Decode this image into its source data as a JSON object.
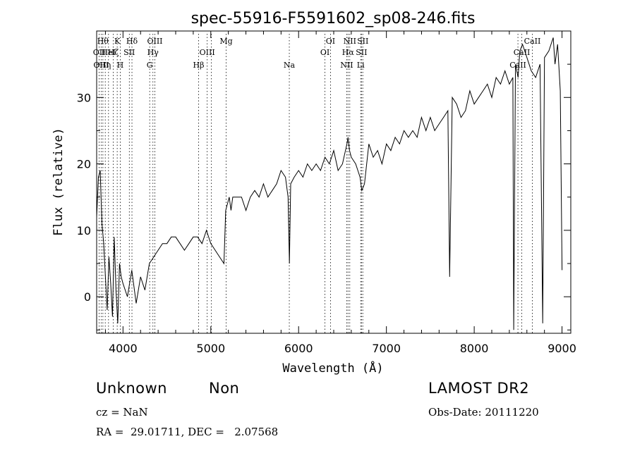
{
  "chart_data": {
    "type": "line",
    "title": "spec-55916-F5591602_sp08-246.fits",
    "xlabel": "Wavelength (Å)",
    "ylabel": "Flux (relative)",
    "xlim": [
      3700,
      9100
    ],
    "ylim": [
      -5.5,
      40
    ],
    "xticks": [
      4000,
      5000,
      6000,
      7000,
      8000,
      9000
    ],
    "yticks": [
      0,
      10,
      20,
      30
    ],
    "grid": false,
    "series": [
      {
        "x": [
          3700,
          3720,
          3740,
          3760,
          3780,
          3800,
          3820,
          3840,
          3860,
          3880,
          3900,
          3920,
          3940,
          3960,
          3980,
          4000,
          4050,
          4100,
          4150,
          4200,
          4250,
          4300,
          4350,
          4400,
          4450,
          4500,
          4550,
          4600,
          4650,
          4700,
          4750,
          4800,
          4850,
          4900,
          4950,
          5000,
          5050,
          5100,
          5150,
          5170,
          5190,
          5210,
          5230,
          5250,
          5300,
          5350,
          5400,
          5450,
          5500,
          5550,
          5600,
          5650,
          5700,
          5750,
          5800,
          5850,
          5880,
          5895,
          5910,
          5950,
          6000,
          6050,
          6100,
          6150,
          6200,
          6250,
          6300,
          6350,
          6400,
          6450,
          6500,
          6550,
          6563,
          6580,
          6600,
          6650,
          6700,
          6720,
          6750,
          6800,
          6850,
          6900,
          6950,
          7000,
          7050,
          7100,
          7150,
          7200,
          7250,
          7300,
          7350,
          7400,
          7450,
          7500,
          7550,
          7600,
          7650,
          7700,
          7720,
          7750,
          7800,
          7850,
          7900,
          7950,
          8000,
          8050,
          8100,
          8150,
          8200,
          8250,
          8300,
          8350,
          8400,
          8440,
          8450,
          8470,
          8500,
          8520,
          8550,
          8600,
          8650,
          8700,
          8750,
          8780,
          8800,
          8850,
          8900,
          8920,
          8950,
          8980,
          9000
        ],
        "y": [
          12,
          18,
          19,
          11,
          8,
          3,
          -2,
          6,
          2,
          -3,
          9,
          1,
          -4,
          5,
          3,
          2,
          0,
          4,
          -1,
          3,
          1,
          5,
          6,
          7,
          8,
          8,
          9,
          9,
          8,
          7,
          8,
          9,
          9,
          8,
          10,
          8,
          7,
          6,
          5,
          13,
          14,
          15,
          13,
          15,
          15,
          15,
          13,
          15,
          16,
          15,
          17,
          15,
          16,
          17,
          19,
          18,
          15,
          5,
          17,
          18,
          19,
          18,
          20,
          19,
          20,
          19,
          21,
          20,
          22,
          19,
          20,
          23,
          24,
          22,
          21,
          20,
          18,
          16,
          17,
          23,
          21,
          22,
          20,
          23,
          22,
          24,
          23,
          25,
          24,
          25,
          24,
          27,
          25,
          27,
          25,
          26,
          27,
          28,
          3,
          30,
          29,
          27,
          28,
          31,
          29,
          30,
          31,
          32,
          30,
          33,
          32,
          34,
          32,
          33,
          -5,
          35,
          33,
          37,
          38,
          36,
          34,
          33,
          35,
          -4,
          36,
          37,
          39,
          35,
          38,
          31,
          4
        ]
      }
    ],
    "line_marks": [
      {
        "wave": 3729,
        "label": "OII",
        "row": 2
      },
      {
        "wave": 3751,
        "label": "OIII",
        "row": 3
      },
      {
        "wave": 3771,
        "label": "Hθ",
        "row": 1
      },
      {
        "wave": 3798,
        "label": "Hη",
        "row": 3
      },
      {
        "wave": 3835,
        "label": "HeI",
        "row": 2
      },
      {
        "wave": 3889,
        "label": "Hζ",
        "row": 2
      },
      {
        "wave": 3934,
        "label": "K",
        "row": 1
      },
      {
        "wave": 3969,
        "label": "H",
        "row": 3
      },
      {
        "wave": 4072,
        "label": "SII",
        "row": 2
      },
      {
        "wave": 4102,
        "label": "Hδ",
        "row": 1
      },
      {
        "wave": 4304,
        "label": "G",
        "row": 3
      },
      {
        "wave": 4341,
        "label": "Hγ",
        "row": 2
      },
      {
        "wave": 4363,
        "label": "OIII",
        "row": 1
      },
      {
        "wave": 4861,
        "label": "Hβ",
        "row": 3
      },
      {
        "wave": 4959,
        "label": "OIII",
        "row": 2
      },
      {
        "wave": 5007,
        "label": "",
        "row": 2
      },
      {
        "wave": 5175,
        "label": "Mg",
        "row": 1
      },
      {
        "wave": 5894,
        "label": "Na",
        "row": 3
      },
      {
        "wave": 6300,
        "label": "OI",
        "row": 2
      },
      {
        "wave": 6363,
        "label": "OI",
        "row": 1
      },
      {
        "wave": 6548,
        "label": "NII",
        "row": 3
      },
      {
        "wave": 6563,
        "label": "Hα",
        "row": 2
      },
      {
        "wave": 6583,
        "label": "NII",
        "row": 1
      },
      {
        "wave": 6707,
        "label": "Li",
        "row": 3
      },
      {
        "wave": 6716,
        "label": "SII",
        "row": 2
      },
      {
        "wave": 6731,
        "label": "SII",
        "row": 1
      },
      {
        "wave": 8498,
        "label": "CaII",
        "row": 3
      },
      {
        "wave": 8542,
        "label": "CaII",
        "row": 2
      },
      {
        "wave": 8662,
        "label": "CaII",
        "row": 1
      }
    ]
  },
  "info": {
    "class": "Unknown",
    "subclass": "Non",
    "survey": "LAMOST DR2",
    "cz": "cz = NaN",
    "obs_date": "Obs-Date: 20111220",
    "coords": "RA =  29.01711, DEC =   2.07568"
  }
}
